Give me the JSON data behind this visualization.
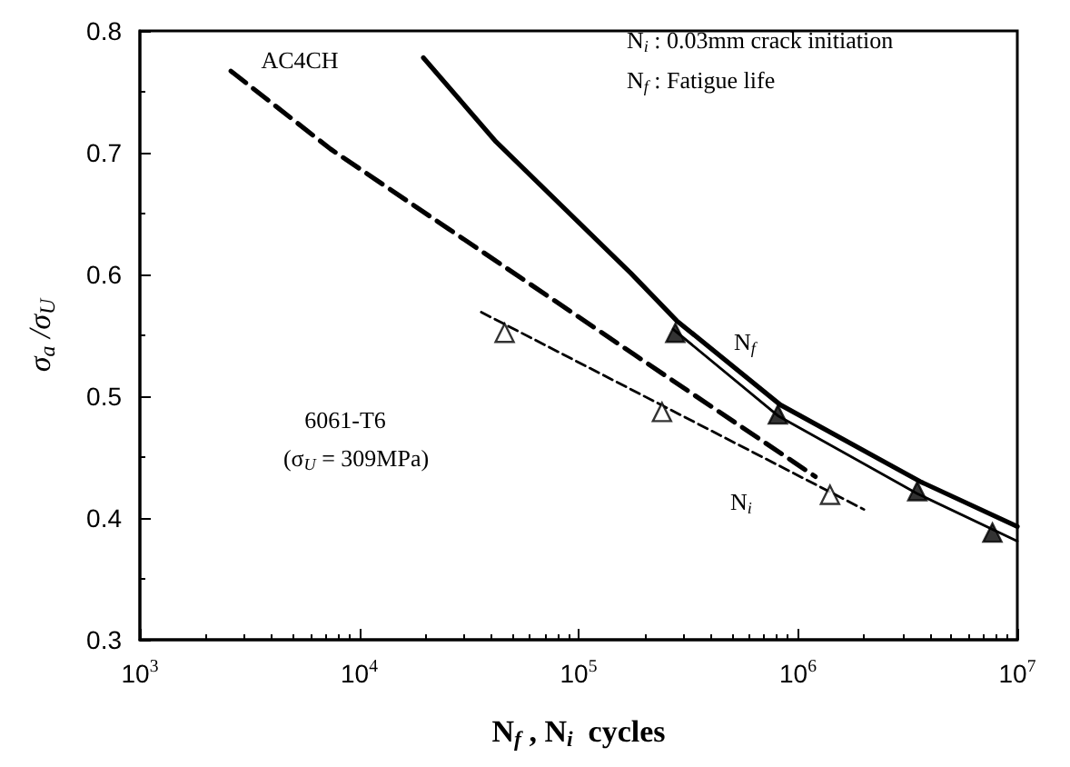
{
  "chart_data": {
    "type": "line",
    "xlabel": "N$_{f}$ , N$_{i}$  cycles",
    "ylabel": "σ$_{a}$ /σ$_{U}$",
    "log": "x",
    "xlim": [
      1000,
      10000000
    ],
    "ylim": [
      0.3,
      0.8
    ],
    "xticks": [
      {
        "value": 1000,
        "label": "10$^{3}$"
      },
      {
        "value": 10000,
        "label": "10$^{4}$"
      },
      {
        "value": 100000,
        "label": "10$^{5}$"
      },
      {
        "value": 1000000,
        "label": "10$^{6}$"
      },
      {
        "value": 10000000,
        "label": "10$^{7}$"
      }
    ],
    "yticks": [
      0.3,
      0.4,
      0.5,
      0.6,
      0.7,
      0.8
    ],
    "grid": false,
    "series": [
      {
        "line_style": "solid",
        "marker": "none",
        "color": "#000000",
        "x": [
          19600,
          42000,
          173000,
          280000,
          830000,
          3600000,
          10000000
        ],
        "values": [
          0.778,
          0.709,
          0.601,
          0.562,
          0.493,
          0.43,
          0.393
        ]
      },
      {
        "line_style": "dashed",
        "marker": "none",
        "color": "#000000",
        "x": [
          2600,
          7400,
          180000,
          1200000
        ],
        "values": [
          0.767,
          0.703,
          0.534,
          0.434
        ]
      },
      {
        "line_style": "solid",
        "marker": "none",
        "color": "#000000",
        "x": [
          270000,
          810000,
          3500000,
          10000000
        ],
        "values": [
          0.555,
          0.484,
          0.42,
          0.381
        ]
      },
      {
        "line_style": "dashed",
        "marker": "none",
        "color": "#000000",
        "x": [
          36000,
          2000000
        ],
        "values": [
          0.569,
          0.407
        ]
      },
      {
        "type": "scatter",
        "marker": "triangle",
        "color": "#000000",
        "x": [
          276000,
          810000,
          3500000,
          7700000
        ],
        "values": [
          0.552,
          0.485,
          0.422,
          0.388
        ]
      },
      {
        "type": "scatter",
        "marker": "triangle",
        "color": "#ffffff",
        "x": [
          46000,
          240000,
          1400000
        ],
        "values": [
          0.552,
          0.487,
          0.419
        ]
      }
    ],
    "annotations": [
      "AC4CH",
      "6061-T6",
      "(σ$_{U}$ = 309MPa)",
      "N$_{f}$",
      "N$_{i}$",
      "N$_{i}$ : 0.03mm crack initiation",
      "N$_{f}$ : Fatigue life"
    ]
  }
}
